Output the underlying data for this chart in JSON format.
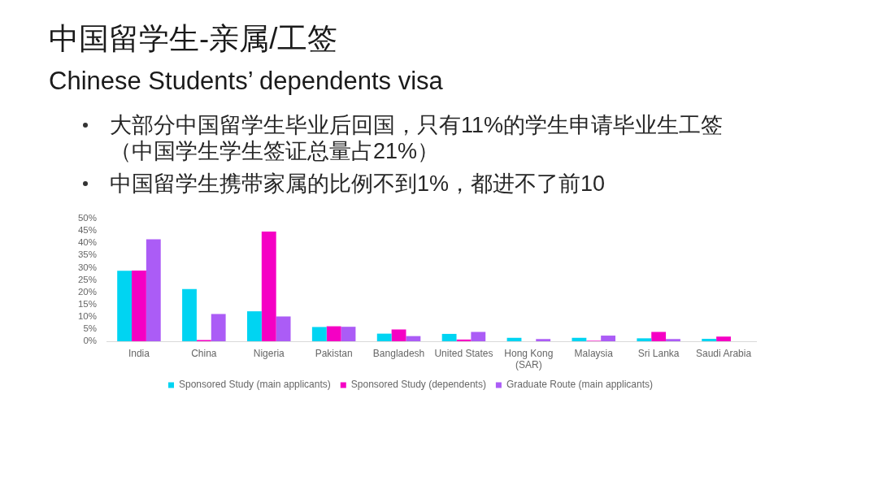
{
  "chart_data": {
    "type": "bar",
    "title": "中国留学生-亲属/工签",
    "subtitle": "Chinese Students’ dependents visa",
    "annotations": [
      "大部分中国留学生毕业后回国，只有11%的学生申请毕业生工签（中国学生学生签证总量占21%）",
      "中国留学生携带家属的比例不到1%，都进不了前10"
    ],
    "categories": [
      "India",
      "China",
      "Nigeria",
      "Pakistan",
      "Bangladesh",
      "United States",
      "Hong Kong (SAR)",
      "Malaysia",
      "Sri Lanka",
      "Saudi Arabia"
    ],
    "series": [
      {
        "name": "Sponsored Study (main applicants)",
        "color": "#00d4f2",
        "values": [
          28.7,
          21.3,
          12.2,
          5.8,
          3.1,
          3.0,
          1.4,
          1.4,
          1.2,
          1.0
        ]
      },
      {
        "name": "Sponsored Study (dependents)",
        "color": "#f500c4",
        "values": [
          28.8,
          0.5,
          44.7,
          6.1,
          4.8,
          0.7,
          null,
          0.2,
          3.8,
          1.9
        ]
      },
      {
        "name": "Graduate Route (main applicants)",
        "color": "#ab5cf6",
        "values": [
          41.5,
          11.1,
          10.1,
          5.9,
          2.1,
          3.8,
          0.9,
          2.3,
          0.9,
          null
        ]
      }
    ],
    "ylim": [
      0,
      50
    ],
    "yticks": [
      {
        "value": 0,
        "label": "0%"
      },
      {
        "value": 5,
        "label": "5%"
      },
      {
        "value": 10,
        "label": "10%"
      },
      {
        "value": 15,
        "label": "15%"
      },
      {
        "value": 20,
        "label": "20%"
      },
      {
        "value": 25,
        "label": "25%"
      },
      {
        "value": 30,
        "label": "30%"
      },
      {
        "value": 35,
        "label": "35%"
      },
      {
        "value": 40,
        "label": "40%"
      },
      {
        "value": 45,
        "label": "45%"
      },
      {
        "value": 50,
        "label": "50%"
      }
    ],
    "grid": false,
    "legend": "bottom"
  }
}
